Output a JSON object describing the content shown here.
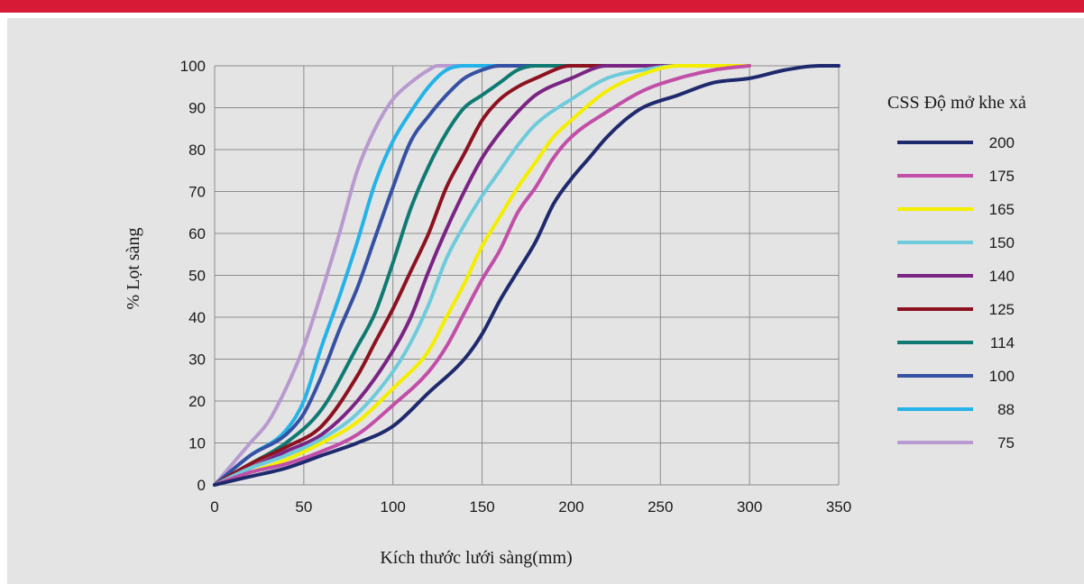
{
  "colors": {
    "top_bar": "#d71a35",
    "panel_bg": "#e4e4e4",
    "plot_bg": "#e4e4e4",
    "grid": "#8c8c8c"
  },
  "chart_data": {
    "type": "line",
    "title": "",
    "xlabel": "Kích thước lưới sàng(mm)",
    "ylabel": "% Lọt sàng",
    "xlim": [
      0,
      350
    ],
    "ylim": [
      0,
      100
    ],
    "x_ticks": [
      "0",
      "50",
      "100",
      "150",
      "200",
      "250",
      "300",
      "350"
    ],
    "y_ticks": [
      "0",
      "10",
      "20",
      "30",
      "40",
      "50",
      "60",
      "70",
      "80",
      "90",
      "100"
    ],
    "grid": true,
    "legend_title": "CSS Độ mở khe xả",
    "legend_position": "right",
    "series": [
      {
        "name": "200",
        "color": "#1f2a6e",
        "points": [
          [
            0,
            0
          ],
          [
            20,
            2
          ],
          [
            40,
            4
          ],
          [
            60,
            7
          ],
          [
            80,
            10
          ],
          [
            100,
            14
          ],
          [
            120,
            22
          ],
          [
            140,
            30
          ],
          [
            150,
            36
          ],
          [
            160,
            44
          ],
          [
            170,
            51
          ],
          [
            180,
            58
          ],
          [
            190,
            67
          ],
          [
            200,
            73
          ],
          [
            210,
            78
          ],
          [
            220,
            83
          ],
          [
            230,
            87
          ],
          [
            240,
            90
          ],
          [
            260,
            93
          ],
          [
            280,
            96
          ],
          [
            300,
            97
          ],
          [
            320,
            99
          ],
          [
            340,
            100
          ],
          [
            350,
            100
          ]
        ]
      },
      {
        "name": "175",
        "color": "#c14ea8",
        "points": [
          [
            0,
            0
          ],
          [
            20,
            3
          ],
          [
            40,
            5
          ],
          [
            60,
            8
          ],
          [
            80,
            12
          ],
          [
            100,
            19
          ],
          [
            120,
            27
          ],
          [
            130,
            33
          ],
          [
            140,
            41
          ],
          [
            150,
            49
          ],
          [
            160,
            56
          ],
          [
            170,
            65
          ],
          [
            180,
            71
          ],
          [
            190,
            78
          ],
          [
            200,
            83
          ],
          [
            220,
            89
          ],
          [
            240,
            94
          ],
          [
            260,
            97
          ],
          [
            280,
            99
          ],
          [
            300,
            100
          ]
        ]
      },
      {
        "name": "165",
        "color": "#f4ee00",
        "points": [
          [
            0,
            0
          ],
          [
            20,
            3
          ],
          [
            40,
            6
          ],
          [
            60,
            10
          ],
          [
            80,
            15
          ],
          [
            100,
            23
          ],
          [
            120,
            32
          ],
          [
            130,
            40
          ],
          [
            140,
            48
          ],
          [
            150,
            57
          ],
          [
            160,
            64
          ],
          [
            170,
            71
          ],
          [
            180,
            77
          ],
          [
            190,
            83
          ],
          [
            200,
            87
          ],
          [
            220,
            94
          ],
          [
            240,
            98
          ],
          [
            260,
            100
          ],
          [
            300,
            100
          ]
        ]
      },
      {
        "name": "150",
        "color": "#6ecbdb",
        "points": [
          [
            0,
            0
          ],
          [
            20,
            4
          ],
          [
            40,
            7
          ],
          [
            60,
            11
          ],
          [
            80,
            17
          ],
          [
            100,
            27
          ],
          [
            110,
            34
          ],
          [
            120,
            43
          ],
          [
            130,
            54
          ],
          [
            140,
            62
          ],
          [
            150,
            69
          ],
          [
            160,
            75
          ],
          [
            170,
            81
          ],
          [
            180,
            86
          ],
          [
            200,
            92
          ],
          [
            220,
            97
          ],
          [
            240,
            99
          ],
          [
            260,
            100
          ],
          [
            300,
            100
          ]
        ]
      },
      {
        "name": "140",
        "color": "#7a2483",
        "points": [
          [
            0,
            0
          ],
          [
            20,
            4
          ],
          [
            40,
            8
          ],
          [
            60,
            12
          ],
          [
            80,
            20
          ],
          [
            100,
            32
          ],
          [
            110,
            40
          ],
          [
            120,
            51
          ],
          [
            130,
            61
          ],
          [
            140,
            70
          ],
          [
            150,
            78
          ],
          [
            160,
            84
          ],
          [
            170,
            89
          ],
          [
            180,
            93
          ],
          [
            200,
            97
          ],
          [
            220,
            100
          ],
          [
            260,
            100
          ]
        ]
      },
      {
        "name": "125",
        "color": "#8c1220",
        "points": [
          [
            0,
            0
          ],
          [
            20,
            5
          ],
          [
            40,
            9
          ],
          [
            60,
            14
          ],
          [
            80,
            26
          ],
          [
            90,
            34
          ],
          [
            100,
            42
          ],
          [
            110,
            51
          ],
          [
            120,
            60
          ],
          [
            130,
            71
          ],
          [
            140,
            79
          ],
          [
            150,
            87
          ],
          [
            160,
            92
          ],
          [
            170,
            95
          ],
          [
            180,
            97
          ],
          [
            200,
            100
          ],
          [
            240,
            100
          ]
        ]
      },
      {
        "name": "114",
        "color": "#0f7a73",
        "points": [
          [
            0,
            0
          ],
          [
            20,
            5
          ],
          [
            40,
            10
          ],
          [
            60,
            18
          ],
          [
            80,
            33
          ],
          [
            90,
            41
          ],
          [
            100,
            53
          ],
          [
            110,
            66
          ],
          [
            120,
            76
          ],
          [
            130,
            84
          ],
          [
            140,
            90
          ],
          [
            150,
            93
          ],
          [
            160,
            96
          ],
          [
            170,
            99
          ],
          [
            180,
            100
          ],
          [
            220,
            100
          ]
        ]
      },
      {
        "name": "100",
        "color": "#3650a3",
        "points": [
          [
            0,
            0
          ],
          [
            20,
            7
          ],
          [
            40,
            12
          ],
          [
            50,
            17
          ],
          [
            60,
            26
          ],
          [
            70,
            37
          ],
          [
            80,
            47
          ],
          [
            90,
            59
          ],
          [
            100,
            71
          ],
          [
            110,
            82
          ],
          [
            120,
            88
          ],
          [
            130,
            93
          ],
          [
            140,
            97
          ],
          [
            150,
            99
          ],
          [
            160,
            100
          ],
          [
            200,
            100
          ]
        ]
      },
      {
        "name": "88",
        "color": "#24b3e8",
        "points": [
          [
            0,
            0
          ],
          [
            20,
            7
          ],
          [
            40,
            13
          ],
          [
            50,
            20
          ],
          [
            60,
            33
          ],
          [
            70,
            45
          ],
          [
            80,
            58
          ],
          [
            90,
            72
          ],
          [
            100,
            82
          ],
          [
            110,
            89
          ],
          [
            120,
            95
          ],
          [
            130,
            99
          ],
          [
            140,
            100
          ],
          [
            180,
            100
          ]
        ]
      },
      {
        "name": "75",
        "color": "#b89ad0",
        "points": [
          [
            0,
            0
          ],
          [
            20,
            10
          ],
          [
            30,
            15
          ],
          [
            40,
            23
          ],
          [
            50,
            33
          ],
          [
            60,
            46
          ],
          [
            70,
            60
          ],
          [
            80,
            75
          ],
          [
            90,
            85
          ],
          [
            100,
            92
          ],
          [
            110,
            96
          ],
          [
            120,
            99
          ],
          [
            125,
            100
          ],
          [
            160,
            100
          ]
        ]
      }
    ]
  }
}
